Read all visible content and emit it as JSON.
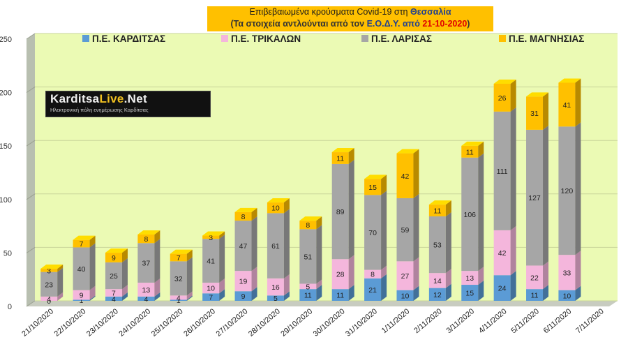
{
  "header": {
    "title_line1_prefix": "Επιβεβαιωμένα κρούσματα Covid-19 στη ",
    "title_line1_region": "Θεσσαλία",
    "title_line2_prefix": "(Τα στοιχεία αντλούνται από τον ",
    "title_line2_source": "Ε.Ο.Δ.Υ. από ",
    "title_line2_date": "21-10-2020",
    "title_line2_suffix": ")"
  },
  "logo": {
    "name_part1": "Karditsa",
    "name_part2": "Live",
    "name_part3": ".Net",
    "tagline": "Ηλεκτρονική πόλη ενημέρωσης Καρδίτσας"
  },
  "colors": {
    "plot_bg": "#ebfab4",
    "wall": "#b8bfb0",
    "karditsa": "#5b9bd5",
    "trikala": "#f4b6dc",
    "larisa": "#a6a6a6",
    "magnisia": "#ffc000"
  },
  "chart_data": {
    "type": "bar",
    "stacked": true,
    "categories": [
      "21/10/2020",
      "22/10/2020",
      "23/10/2020",
      "24/10/2020",
      "25/10/2020",
      "26/10/2020",
      "27/10/2020",
      "28/10/2020",
      "29/10/2020",
      "30/10/2020",
      "31/10/2020",
      "1/11/2020",
      "2/11/2020",
      "3/11/2020",
      "4/11/2020",
      "5/11/2020",
      "6/11/2020",
      "7/11/2020"
    ],
    "series": [
      {
        "name": "Π.Ε. ΚΑΡΔΙΤΣΑΣ",
        "values": [
          0,
          1,
          4,
          4,
          1,
          7,
          9,
          5,
          11,
          11,
          21,
          10,
          12,
          15,
          24,
          11,
          10,
          null
        ],
        "labels": [
          "0",
          "1",
          "4",
          "4",
          "1",
          "7",
          "9",
          "5",
          "11",
          "11",
          "21",
          "10",
          "12",
          "15",
          "24",
          "11",
          "10",
          ""
        ]
      },
      {
        "name": "Π.Ε. ΤΡΙΚΑΛΩΝ",
        "values": [
          4,
          9,
          7,
          13,
          4,
          10,
          19,
          16,
          5,
          28,
          8,
          27,
          14,
          13,
          42,
          22,
          33,
          null
        ],
        "labels": [
          "4",
          "9",
          "7",
          "13",
          "4",
          "10",
          "19",
          "16",
          "5",
          "28",
          "8",
          "27",
          "14",
          "13",
          "42",
          "22",
          "33",
          ""
        ]
      },
      {
        "name": "Π.Ε. ΛΑΡΙΣΑΣ",
        "values": [
          23,
          40,
          25,
          37,
          32,
          41,
          47,
          61,
          51,
          89,
          70,
          59,
          53,
          106,
          111,
          127,
          120,
          null
        ],
        "labels": [
          "23",
          "40",
          "25",
          "37",
          "32",
          "41",
          "47",
          "61",
          "51",
          "89",
          "70",
          "59",
          "53",
          "106",
          "111",
          "127",
          "120",
          ""
        ]
      },
      {
        "name": "Π.Ε. ΜΑΓΝΗΣΙΑΣ",
        "values": [
          3,
          7,
          9,
          8,
          7,
          3,
          8,
          10,
          8,
          11,
          15,
          42,
          11,
          11,
          26,
          31,
          41,
          null
        ],
        "labels": [
          "3",
          "7",
          "9",
          "8",
          "7",
          "3",
          "8",
          "10",
          "8",
          "11",
          "15",
          "42",
          "11",
          "11",
          "26",
          "31",
          "41",
          ""
        ]
      }
    ],
    "y_ticks": [
      "0",
      "50",
      "100",
      "150",
      "200",
      "250"
    ],
    "ylim": [
      0,
      250
    ],
    "grid": true,
    "legend_position": "top"
  }
}
